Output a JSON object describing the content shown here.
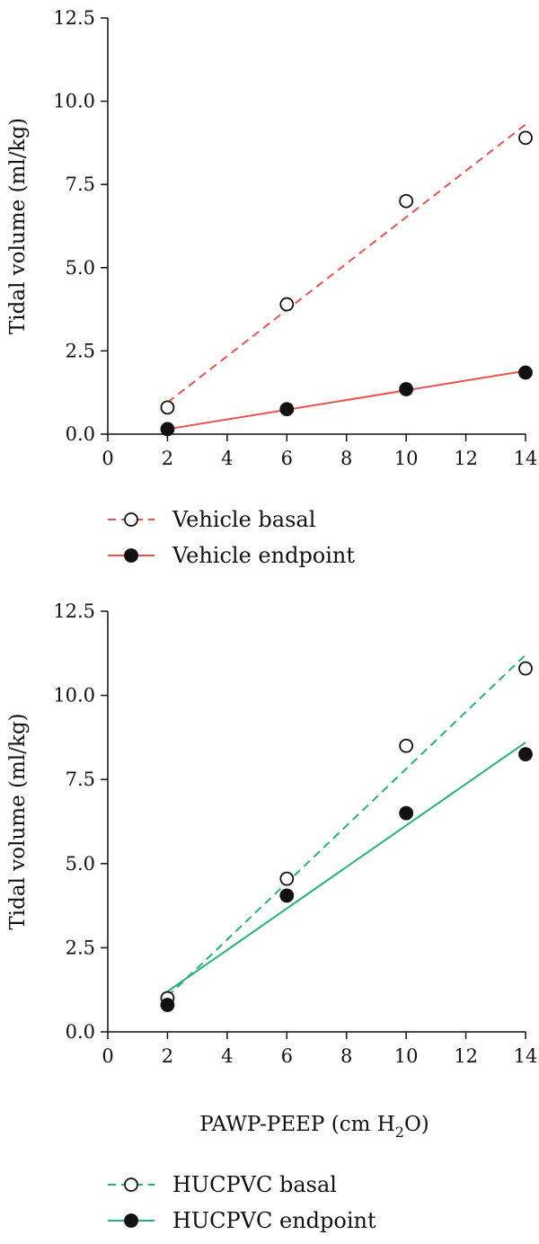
{
  "colors": {
    "vehicle": "#e8524f",
    "hucpvc": "#22b37a",
    "axis": "#111111",
    "marker_edge": "#111111",
    "marker_fill_open": "#ffffff",
    "marker_fill_closed": "#111111"
  },
  "x_axis_label_main": "PAWP-PEEP (cm H",
  "x_axis_label_sub": "2",
  "x_axis_label_end": "O)",
  "chart_data": [
    {
      "type": "scatter",
      "ylabel": "Tidal volume (ml/kg)",
      "xlabel": "",
      "xlim": [
        0,
        14
      ],
      "ylim": [
        0,
        12.5
      ],
      "x_ticks": [
        "0",
        "2",
        "4",
        "6",
        "8",
        "10",
        "12",
        "14"
      ],
      "y_ticks": [
        "0.0",
        "2.5",
        "5.0",
        "7.5",
        "10.0",
        "12.5"
      ],
      "grid": false,
      "legend_position": "below",
      "series": [
        {
          "name": "Vehicle basal",
          "marker": "open-circle",
          "line_style": "dashed",
          "color_key": "vehicle",
          "x": [
            2,
            6,
            10,
            14
          ],
          "y": [
            0.8,
            3.9,
            7.0,
            8.9
          ],
          "fit_line": {
            "x": [
              2,
              14
            ],
            "y": [
              0.95,
              9.3
            ]
          }
        },
        {
          "name": "Vehicle endpoint",
          "marker": "filled-circle",
          "line_style": "solid",
          "color_key": "vehicle",
          "x": [
            2,
            6,
            10,
            14
          ],
          "y": [
            0.15,
            0.75,
            1.35,
            1.85
          ],
          "fit_line": {
            "x": [
              2,
              14
            ],
            "y": [
              0.15,
              1.9
            ]
          }
        }
      ]
    },
    {
      "type": "scatter",
      "ylabel": "Tidal volume (ml/kg)",
      "xlabel": "PAWP-PEEP (cm H2O)",
      "xlim": [
        0,
        14
      ],
      "ylim": [
        0,
        12.5
      ],
      "x_ticks": [
        "0",
        "2",
        "4",
        "6",
        "8",
        "10",
        "12",
        "14"
      ],
      "y_ticks": [
        "0.0",
        "2.5",
        "5.0",
        "7.5",
        "10.0",
        "12.5"
      ],
      "grid": false,
      "legend_position": "below",
      "series": [
        {
          "name": "HUCPVC basal",
          "marker": "open-circle",
          "line_style": "dashed",
          "color_key": "hucpvc",
          "x": [
            2,
            6,
            10,
            14
          ],
          "y": [
            1.0,
            4.55,
            8.5,
            10.8
          ],
          "fit_line": {
            "x": [
              2,
              14
            ],
            "y": [
              1.05,
              11.2
            ]
          }
        },
        {
          "name": "HUCPVC endpoint",
          "marker": "filled-circle",
          "line_style": "solid",
          "color_key": "hucpvc",
          "x": [
            2,
            6,
            10,
            14
          ],
          "y": [
            0.8,
            4.05,
            6.5,
            8.25
          ],
          "fit_line": {
            "x": [
              2,
              14
            ],
            "y": [
              1.2,
              8.6
            ]
          }
        }
      ]
    }
  ]
}
